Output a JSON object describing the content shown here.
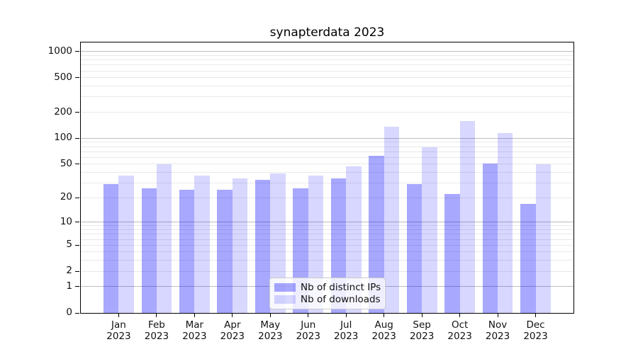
{
  "chart_data": {
    "type": "bar",
    "title": "synapterdata 2023",
    "categories": [
      "Jan",
      "Feb",
      "Mar",
      "Apr",
      "May",
      "Jun",
      "Jul",
      "Aug",
      "Sep",
      "Oct",
      "Nov",
      "Dec"
    ],
    "year_label": "2023",
    "series": [
      {
        "name": "Nb of distinct IPs",
        "color": "rgba(0,0,255,0.34)",
        "values": [
          29,
          26,
          25,
          25,
          33,
          26,
          34,
          63,
          29,
          22,
          51,
          17
        ]
      },
      {
        "name": "Nb of downloads",
        "color": "rgba(0,0,255,0.155)",
        "values": [
          37,
          50,
          37,
          34,
          39,
          37,
          47,
          137,
          78,
          158,
          115,
          50
        ]
      }
    ],
    "xlabel": "",
    "ylabel": "",
    "yscale": "log1p",
    "ylim": [
      0,
      1270
    ],
    "yticks": [
      1000,
      500,
      200,
      100,
      50,
      20,
      10,
      5,
      2,
      1,
      0
    ],
    "grid_major": [
      1,
      10,
      100,
      1000
    ],
    "grid_minor_decades": [
      1,
      10,
      100
    ],
    "legend_position": "lower center",
    "colors": {
      "grid_major": "#bdbdbd",
      "grid_minor": "#e9e9e9",
      "axis": "#000000",
      "text": "#111111"
    }
  }
}
